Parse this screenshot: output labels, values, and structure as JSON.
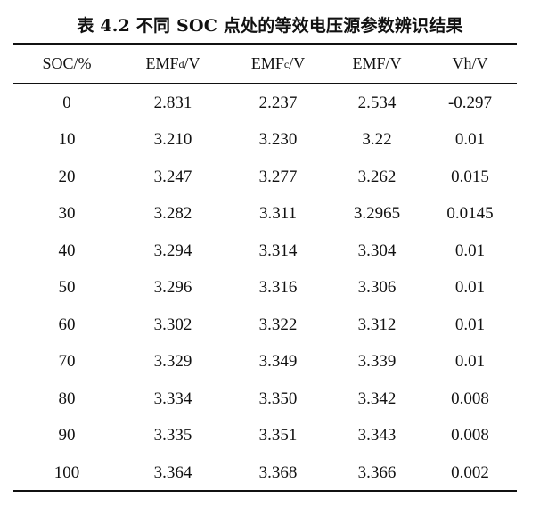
{
  "caption": "表 4.2 不同 SOC 点处的等效电压源参数辨识结果",
  "headers": {
    "soc": "SOC/%",
    "emfd_base": "EMF",
    "emfd_sub": "d",
    "emfd_unit": "/V",
    "emfc_base": "EMF",
    "emfc_sub": "c",
    "emfc_unit": "/V",
    "emf": "EMF/V",
    "vh": "Vh/V"
  },
  "rows": [
    {
      "soc": "0",
      "emfd": "2.831",
      "emfc": "2.237",
      "emf": "2.534",
      "vh": "-0.297"
    },
    {
      "soc": "10",
      "emfd": "3.210",
      "emfc": "3.230",
      "emf": "3.22",
      "vh": "0.01"
    },
    {
      "soc": "20",
      "emfd": "3.247",
      "emfc": "3.277",
      "emf": "3.262",
      "vh": "0.015"
    },
    {
      "soc": "30",
      "emfd": "3.282",
      "emfc": "3.311",
      "emf": "3.2965",
      "vh": "0.0145"
    },
    {
      "soc": "40",
      "emfd": "3.294",
      "emfc": "3.314",
      "emf": "3.304",
      "vh": "0.01"
    },
    {
      "soc": "50",
      "emfd": "3.296",
      "emfc": "3.316",
      "emf": "3.306",
      "vh": "0.01"
    },
    {
      "soc": "60",
      "emfd": "3.302",
      "emfc": "3.322",
      "emf": "3.312",
      "vh": "0.01"
    },
    {
      "soc": "70",
      "emfd": "3.329",
      "emfc": "3.349",
      "emf": "3.339",
      "vh": "0.01"
    },
    {
      "soc": "80",
      "emfd": "3.334",
      "emfc": "3.350",
      "emf": "3.342",
      "vh": "0.008"
    },
    {
      "soc": "90",
      "emfd": "3.335",
      "emfc": "3.351",
      "emf": "3.343",
      "vh": "0.008"
    },
    {
      "soc": "100",
      "emfd": "3.364",
      "emfc": "3.368",
      "emf": "3.366",
      "vh": "0.002"
    }
  ]
}
